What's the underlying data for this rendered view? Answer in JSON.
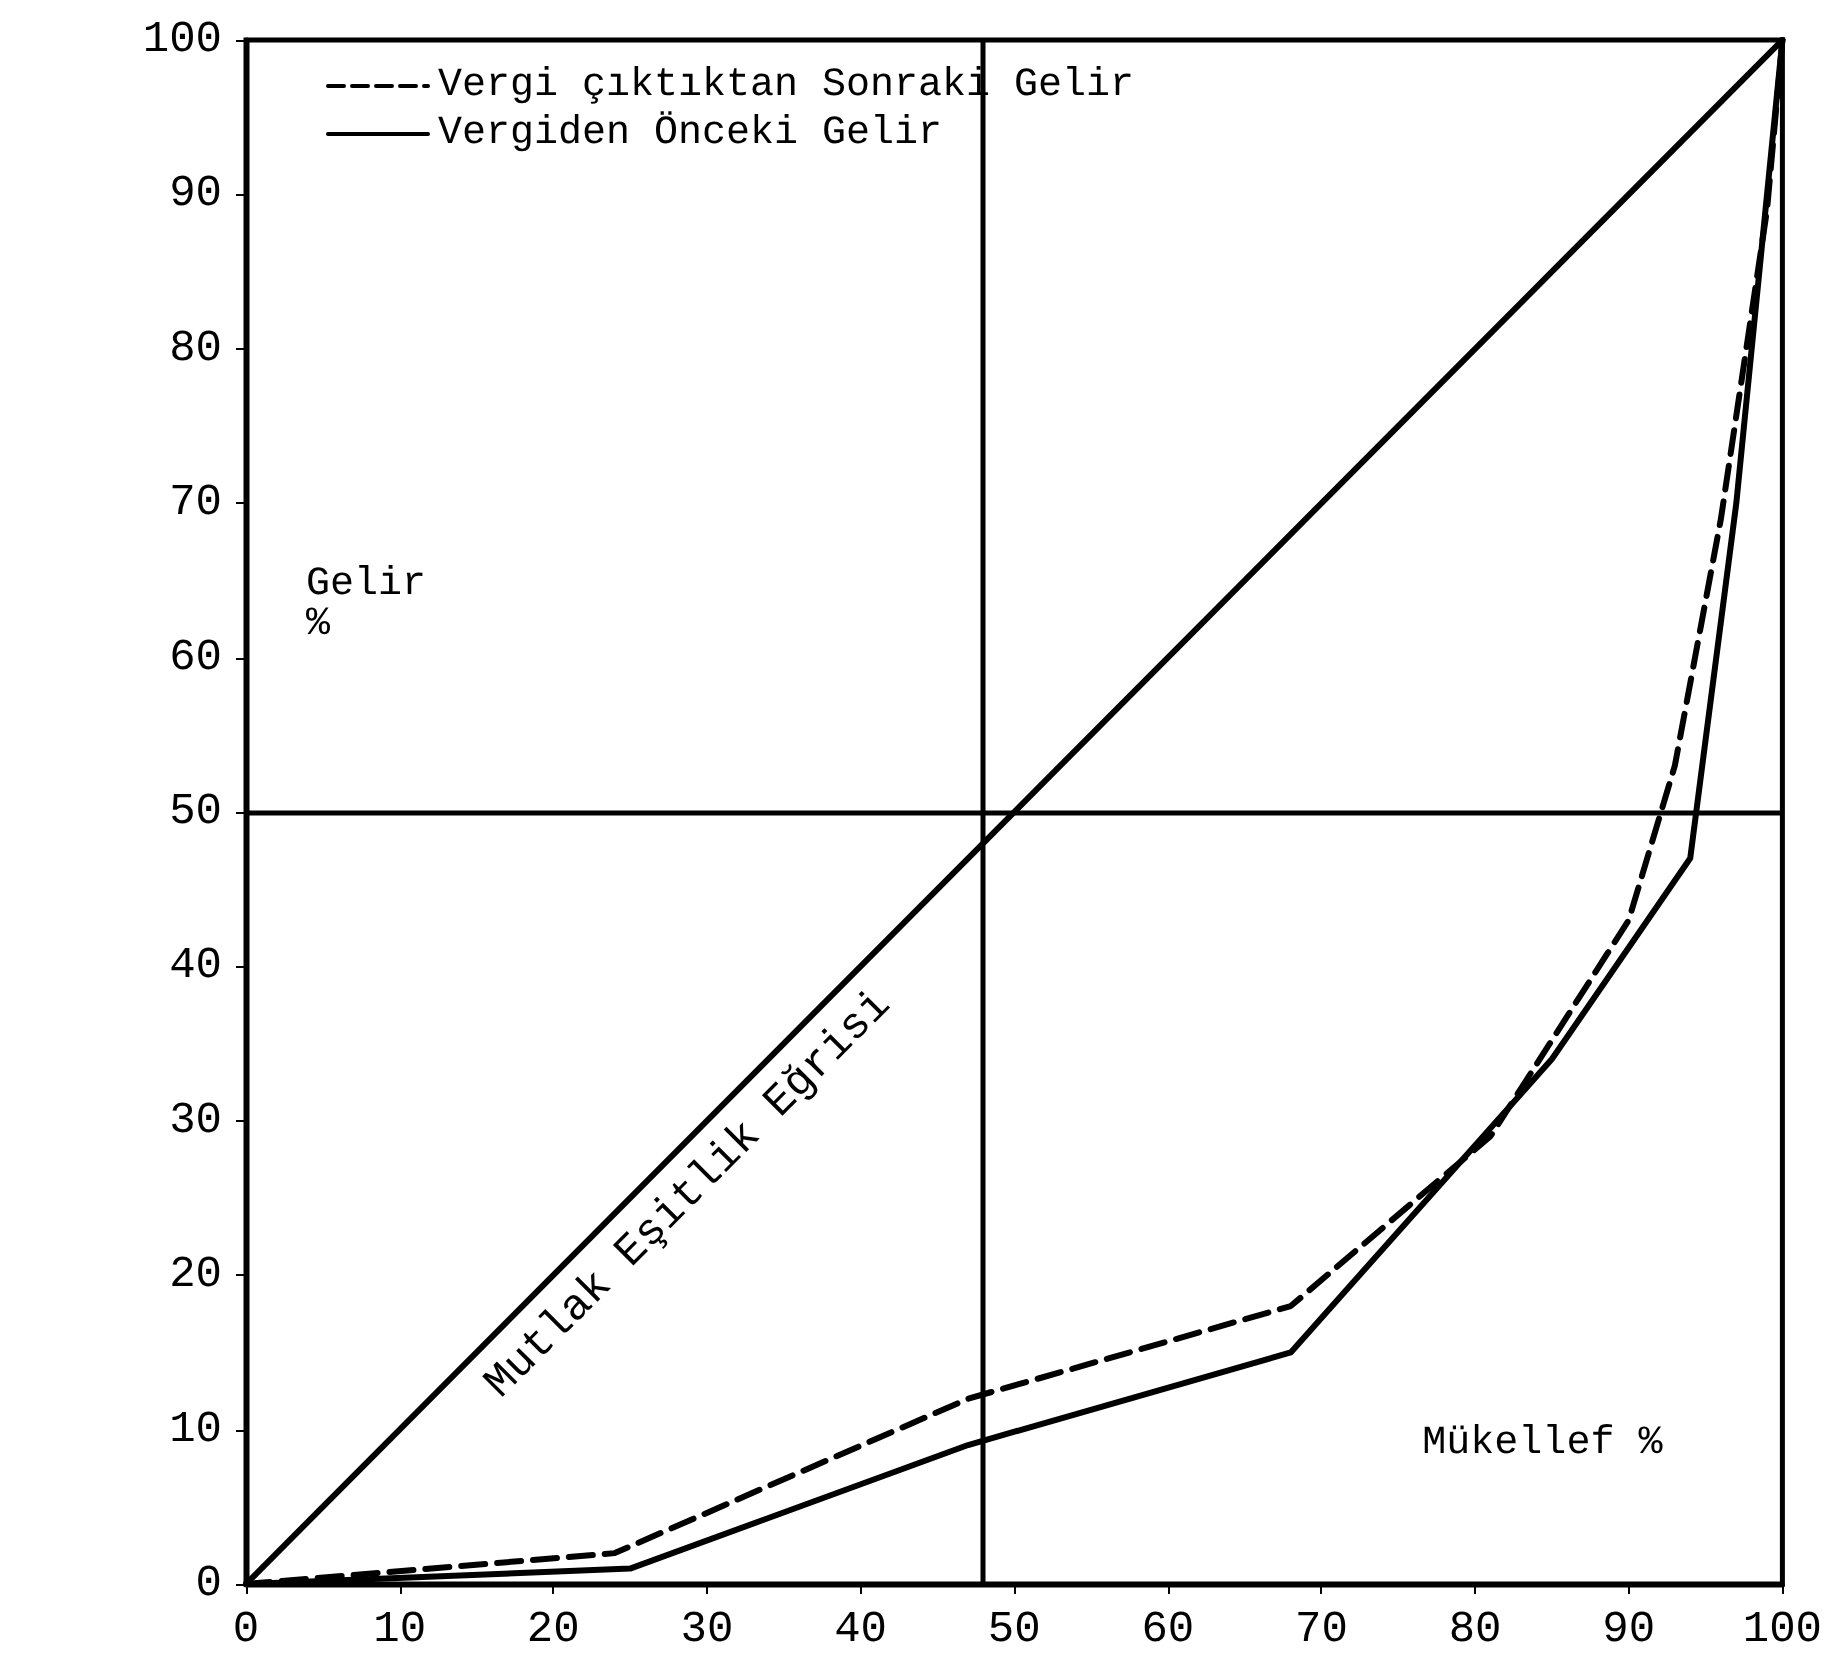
{
  "chart_data": {
    "type": "line",
    "xlabel": "Mükellef %",
    "ylabel": "Gelir\n%",
    "xlim": [
      0,
      100
    ],
    "ylim": [
      0,
      100
    ],
    "xticks": [
      0,
      10,
      20,
      30,
      40,
      50,
      60,
      70,
      80,
      90,
      100
    ],
    "yticks": [
      0,
      10,
      20,
      30,
      40,
      50,
      60,
      70,
      80,
      90,
      100
    ],
    "series": [
      {
        "color": "#000000",
        "line_style": "solid",
        "x": [
          0,
          100
        ],
        "values": [
          0,
          100
        ]
      },
      {
        "name": "Vergi çıktıktan Sonraki Gelir",
        "color": "#000000",
        "line_style": "dashed",
        "x": [
          0,
          24,
          47,
          68,
          81,
          90,
          93,
          96,
          99,
          100
        ],
        "values": [
          0,
          2,
          12,
          18,
          29,
          43,
          53,
          69,
          89,
          100
        ]
      },
      {
        "name": "Vergiden Önceki Gelir",
        "color": "#000000",
        "line_style": "solid",
        "x": [
          0,
          25,
          47,
          68,
          85,
          94,
          97,
          100
        ],
        "values": [
          0,
          1,
          9,
          15,
          34,
          47,
          70,
          100
        ]
      }
    ],
    "ref_lines": [
      {
        "axis": "x",
        "value": 48,
        "color": "#000000"
      },
      {
        "axis": "y",
        "value": 50,
        "color": "#000000"
      }
    ],
    "annotations": [
      {
        "text": "Mutlak Eşitlik Eğrisi",
        "x": 27,
        "y": 27
      }
    ],
    "legend": "top left",
    "grid": false,
    "marker": "none"
  }
}
